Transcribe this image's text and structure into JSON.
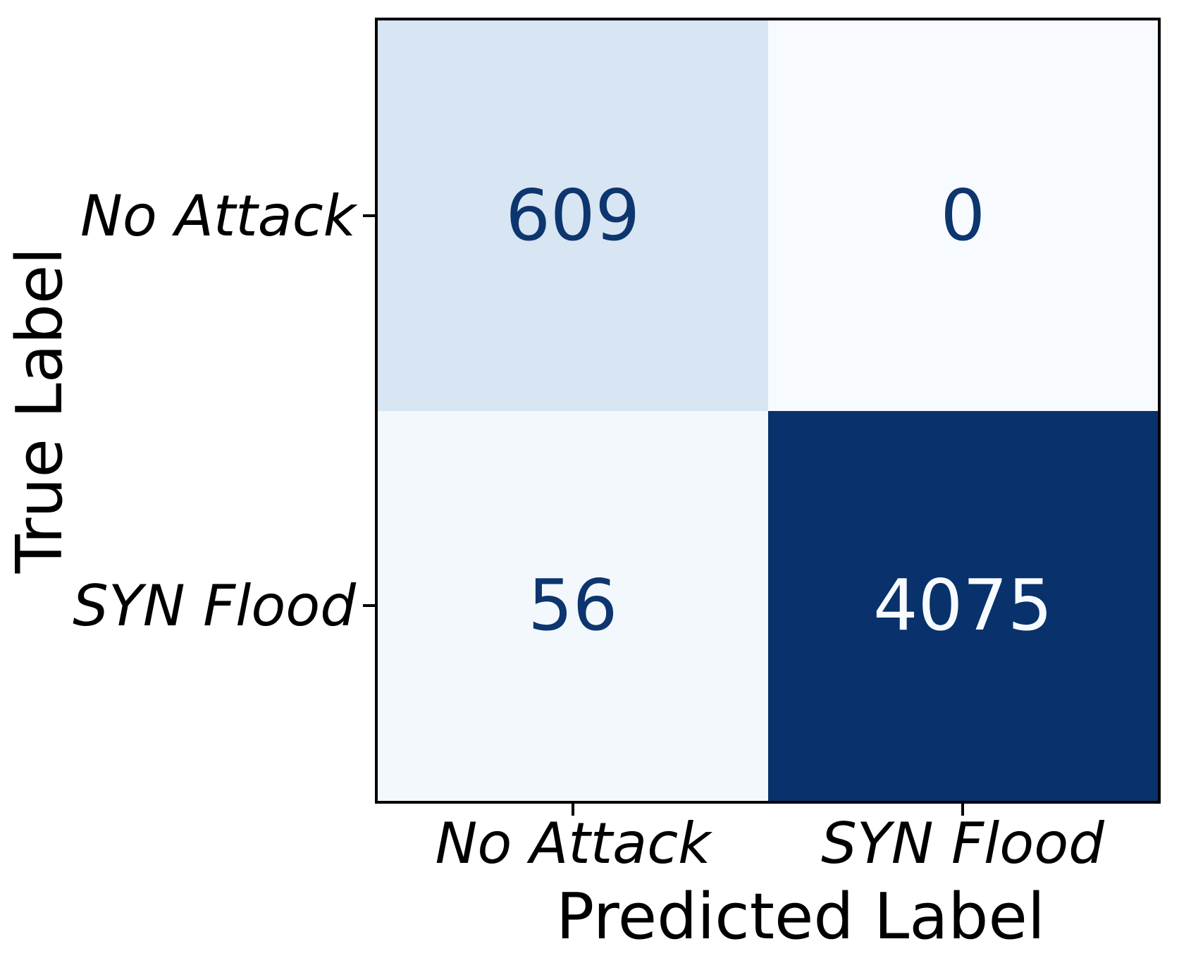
{
  "chart_data": {
    "type": "heatmap",
    "subtype": "confusion_matrix",
    "title": "",
    "xlabel": "Predicted Label",
    "ylabel": "True Label",
    "x_tick_labels": [
      "No Attack",
      "SYN Flood"
    ],
    "y_tick_labels": [
      "No Attack",
      "SYN Flood"
    ],
    "matrix": [
      [
        609,
        0
      ],
      [
        56,
        4075
      ]
    ],
    "vmin": 0,
    "vmax": 4075,
    "colormap": "Blues",
    "grid": false,
    "legend": "none",
    "cell_bg_colors": [
      [
        "#d8e5f2",
        "#f7fbff"
      ],
      [
        "#f3f8fd",
        "#09316b"
      ]
    ],
    "cell_text_colors": [
      [
        "#0d356e",
        "#0d356e"
      ],
      [
        "#0d356e",
        "#f7fbff"
      ]
    ],
    "spine_color": "#000000",
    "text_color": "#000000",
    "background_color": "#ffffff"
  }
}
